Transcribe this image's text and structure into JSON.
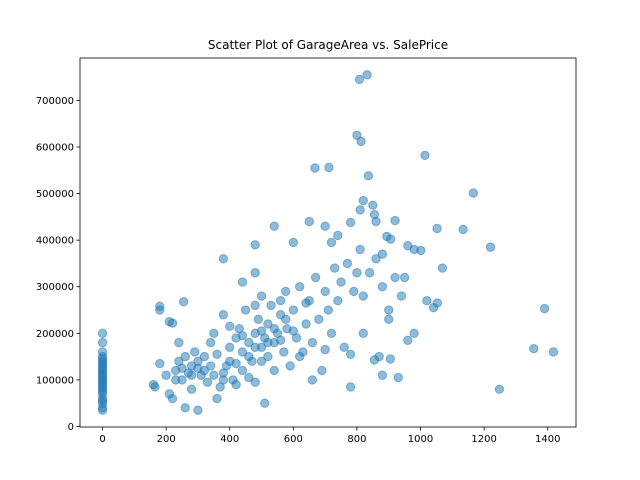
{
  "chart_data": {
    "type": "scatter",
    "title": "Scatter Plot of GarageArea vs. SalePrice",
    "color": "#1f77b4",
    "alpha": 0.5,
    "x": [
      0,
      0,
      0,
      0,
      0,
      0,
      0,
      0,
      0,
      0,
      0,
      0,
      0,
      0,
      0,
      0,
      0,
      0,
      0,
      0,
      0,
      0,
      0,
      0,
      0,
      808,
      832,
      800,
      813,
      1014,
      668,
      712,
      836,
      1166,
      1134,
      1220,
      1390,
      1356,
      1418,
      1248,
      1052,
      1069,
      1053,
      1041,
      1020,
      1001,
      980,
      960,
      920,
      894,
      906,
      850,
      855,
      860,
      810,
      820,
      780,
      740,
      720,
      700,
      650,
      600,
      540,
      480,
      380,
      255,
      180,
      180,
      210,
      220,
      440,
      480,
      880,
      930,
      905,
      870,
      855,
      780,
      780,
      760,
      900,
      940,
      950,
      880,
      820,
      840,
      860,
      880,
      900,
      820,
      980,
      960,
      920,
      160,
      165,
      180,
      200,
      210,
      220,
      230,
      240,
      250,
      260,
      270,
      280,
      290,
      300,
      300,
      310,
      320,
      330,
      340,
      350,
      360,
      370,
      380,
      390,
      400,
      400,
      410,
      420,
      430,
      440,
      440,
      450,
      460,
      470,
      480,
      480,
      490,
      500,
      500,
      510,
      510,
      520,
      520,
      530,
      540,
      540,
      550,
      560,
      570,
      576,
      580,
      590,
      600,
      610,
      620,
      630,
      640,
      650,
      660,
      670,
      680,
      690,
      700,
      710,
      720,
      730,
      740,
      750,
      770,
      790,
      800,
      810,
      240,
      260,
      280,
      300,
      320,
      340,
      360,
      380,
      420,
      460,
      480,
      500,
      520,
      560,
      600,
      460,
      420,
      380,
      350,
      280,
      250,
      230,
      576,
      540,
      500,
      440,
      400,
      620,
      660,
      700,
      640,
      560,
      480
    ],
    "y": [
      35000,
      40000,
      50000,
      55000,
      60000,
      70000,
      75000,
      80000,
      85000,
      90000,
      95000,
      100000,
      105000,
      110000,
      115000,
      120000,
      125000,
      130000,
      135000,
      140000,
      145000,
      150000,
      160000,
      180000,
      200000,
      745000,
      755000,
      625000,
      612000,
      582000,
      555000,
      556000,
      538000,
      501000,
      423000,
      385000,
      253000,
      167000,
      160000,
      80000,
      425000,
      340000,
      265000,
      255000,
      270000,
      378000,
      380000,
      388000,
      442000,
      408000,
      402000,
      475000,
      455000,
      440000,
      465000,
      485000,
      438000,
      410000,
      395000,
      430000,
      440000,
      395000,
      430000,
      390000,
      360000,
      268000,
      258000,
      250000,
      225000,
      222000,
      310000,
      330000,
      110000,
      105000,
      145000,
      150000,
      143000,
      85000,
      155000,
      170000,
      250000,
      280000,
      320000,
      300000,
      280000,
      330000,
      360000,
      370000,
      230000,
      200000,
      200000,
      185000,
      320000,
      90000,
      85000,
      135000,
      110000,
      70000,
      60000,
      120000,
      140000,
      100000,
      40000,
      115000,
      130000,
      160000,
      35000,
      125000,
      110000,
      150000,
      95000,
      180000,
      200000,
      60000,
      85000,
      240000,
      130000,
      140000,
      170000,
      100000,
      190000,
      210000,
      120000,
      160000,
      250000,
      180000,
      140000,
      200000,
      95000,
      230000,
      170000,
      280000,
      50000,
      190000,
      150000,
      220000,
      260000,
      180000,
      120000,
      200000,
      240000,
      160000,
      290000,
      210000,
      130000,
      250000,
      190000,
      300000,
      160000,
      220000,
      270000,
      180000,
      320000,
      230000,
      120000,
      290000,
      250000,
      200000,
      340000,
      270000,
      310000,
      350000,
      290000,
      330000,
      380000,
      180000,
      150000,
      110000,
      140000,
      120000,
      130000,
      155000,
      115000,
      135000,
      150000,
      170000,
      140000,
      180000,
      185000,
      205000,
      105000,
      90000,
      100000,
      110000,
      80000,
      125000,
      100000,
      230000,
      210000,
      205000,
      195000,
      215000,
      150000,
      100000,
      165000,
      265000,
      270000,
      260000
    ],
    "xlim": [
      -70.9,
      1488.9
    ],
    "ylim": [
      -1105,
      791005
    ],
    "xticks": [
      0,
      200,
      400,
      600,
      800,
      1000,
      1200,
      1400
    ],
    "yticks": [
      0,
      100000,
      200000,
      300000,
      400000,
      500000,
      600000,
      700000
    ]
  }
}
